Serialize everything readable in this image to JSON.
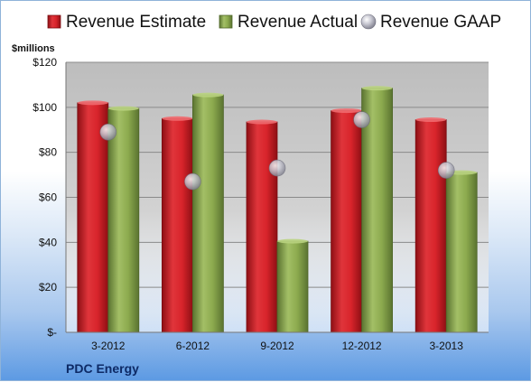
{
  "chart_data": {
    "type": "bar",
    "unit_label": "$millions",
    "company": "PDC Energy",
    "categories": [
      "3-2012",
      "6-2012",
      "9-2012",
      "12-2012",
      "3-2013"
    ],
    "series": [
      {
        "name": "Revenue Estimate",
        "kind": "bar",
        "color": "#d8242b",
        "values": [
          102,
          95,
          93.5,
          98.5,
          94.5
        ]
      },
      {
        "name": "Revenue Actual",
        "kind": "bar",
        "color": "#8caa4e",
        "values": [
          99.5,
          105.5,
          40.5,
          108.5,
          71
        ]
      },
      {
        "name": "Revenue GAAP",
        "kind": "marker",
        "color": "#b9b9c6",
        "values": [
          89,
          67,
          73,
          94.5,
          72
        ]
      }
    ],
    "ylim": [
      0,
      120
    ],
    "yticks": [
      0,
      20,
      40,
      60,
      80,
      100,
      120
    ],
    "ytick_labels": [
      "$-",
      "$20",
      "$40",
      "$60",
      "$80",
      "$100",
      "$120"
    ],
    "grid": true,
    "legend_position": "top"
  }
}
